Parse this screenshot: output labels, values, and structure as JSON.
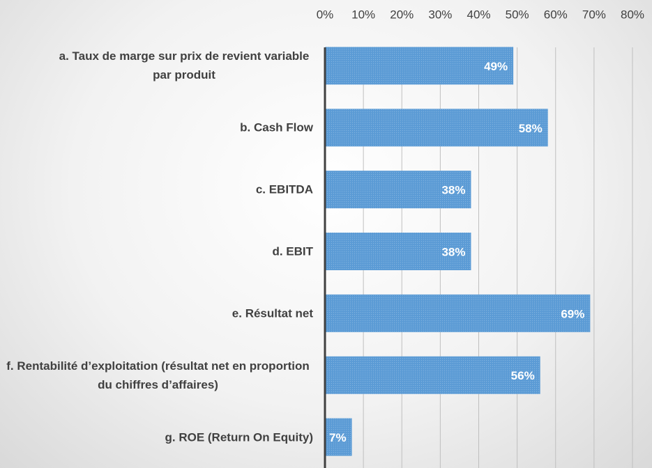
{
  "chart_data": {
    "type": "bar",
    "orientation": "horizontal",
    "categories": [
      "a. Taux de marge sur prix de revient variable par produit",
      "b. Cash Flow",
      "c. EBITDA",
      "d. EBIT",
      "e. Résultat net",
      "f. Rentabilité d’exploitation (résultat net en proportion du chiffres d’affaires)",
      "g. ROE (Return On Equity)"
    ],
    "values": [
      49,
      58,
      38,
      38,
      69,
      56,
      7
    ],
    "value_labels": [
      "49%",
      "58%",
      "38%",
      "38%",
      "69%",
      "56%",
      "7%"
    ],
    "color": "#5b9bd5",
    "xlim": [
      0,
      80
    ],
    "xticks": [
      {
        "value": 0,
        "label": "0%"
      },
      {
        "value": 10,
        "label": "10%"
      },
      {
        "value": 20,
        "label": "20%"
      },
      {
        "value": 30,
        "label": "30%"
      },
      {
        "value": 40,
        "label": "40%"
      },
      {
        "value": 50,
        "label": "50%"
      },
      {
        "value": 60,
        "label": "60%"
      },
      {
        "value": 70,
        "label": "70%"
      },
      {
        "value": 80,
        "label": "80%"
      }
    ],
    "grid": true
  }
}
